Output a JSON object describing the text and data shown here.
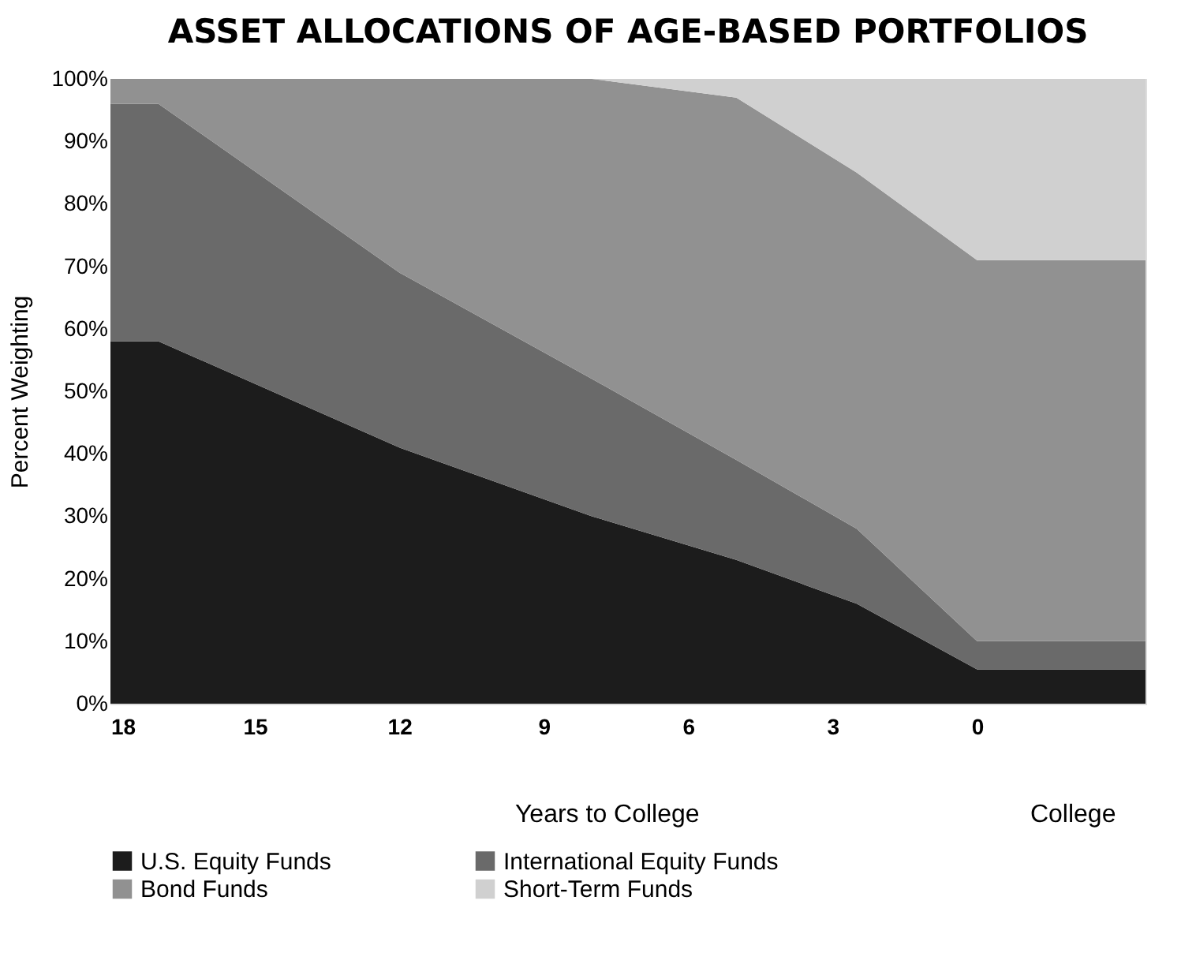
{
  "chart_data": {
    "type": "area",
    "title": "ASSET ALLOCATIONS OF AGE-BASED PORTFOLIOS",
    "ylabel": "Percent Weighting",
    "stacked": true,
    "x": [
      18,
      17,
      12,
      8,
      5,
      2.5,
      0,
      -3.5
    ],
    "series": [
      {
        "name": "U.S. Equity Funds",
        "color": "#1c1c1c",
        "values": [
          58,
          58,
          41,
          30,
          23,
          16,
          5.5,
          5.5
        ]
      },
      {
        "name": "International Equity Funds",
        "color": "#6a6a6a",
        "values": [
          38,
          38,
          28,
          22,
          16,
          12,
          4.5,
          4.5
        ]
      },
      {
        "name": "Bond Funds",
        "color": "#919191",
        "values": [
          4,
          4,
          31,
          48,
          58,
          57,
          61,
          61
        ]
      },
      {
        "name": "Short-Term Funds",
        "color": "#d0d0d0",
        "values": [
          0,
          0,
          0,
          0,
          3,
          15,
          29,
          29
        ]
      }
    ],
    "xlim": [
      18,
      -3.5
    ],
    "xticks": [
      18,
      15,
      12,
      9,
      6,
      3,
      0
    ],
    "ylim": [
      0,
      100
    ],
    "yticks": [
      {
        "value": 0,
        "label": "0%"
      },
      {
        "value": 10,
        "label": "10%"
      },
      {
        "value": 20,
        "label": "20%"
      },
      {
        "value": 30,
        "label": "30%"
      },
      {
        "value": 40,
        "label": "40%"
      },
      {
        "value": 50,
        "label": "50%"
      },
      {
        "value": 60,
        "label": "60%"
      },
      {
        "value": 70,
        "label": "70%"
      },
      {
        "value": 80,
        "label": "80%"
      },
      {
        "value": 90,
        "label": "90%"
      },
      {
        "value": 100,
        "label": "100%"
      }
    ],
    "annotations": [
      "Years to College",
      "College"
    ],
    "grid": false,
    "legend": "bottom"
  }
}
